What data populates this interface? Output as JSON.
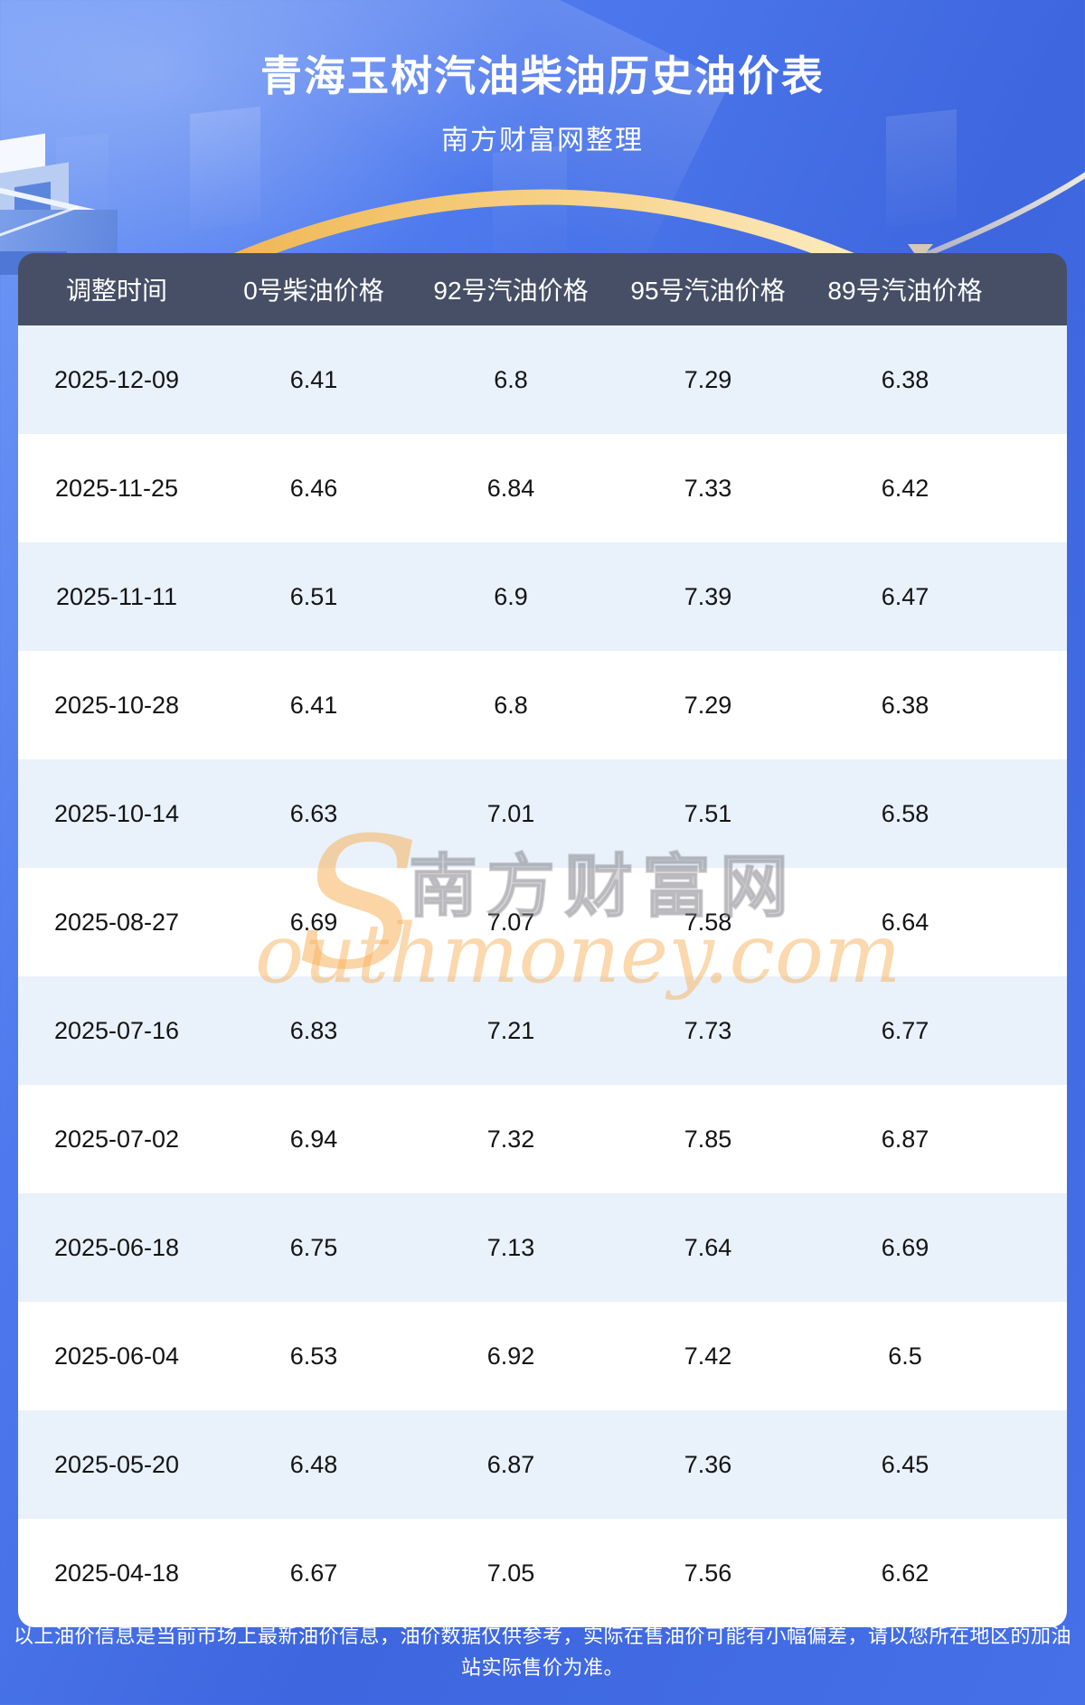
{
  "page": {
    "title": "青海玉树汽油柴油历史油价表",
    "subtitle": "南方财富网整理"
  },
  "watermark": {
    "s_glyph": "S",
    "brand_cjk": "南方财富网",
    "brand_latin": "outhmoney.com"
  },
  "footer": {
    "disclaimer": "以上油价信息是当前市场上最新油价信息，油价数据仅供参考，实际在售油价可能有小幅偏差，请以您所在地区的加油站实际售价为准。"
  },
  "colors": {
    "page_blue": "#4a74ea",
    "header_bar": "#464f66",
    "row_tint": "#e9f1fb",
    "row_plain": "#ffffff",
    "gold_arc": "#f2b858",
    "watermark_orange": "#f8b15c",
    "watermark_gray": "#87878c"
  },
  "chart_data": {
    "type": "table",
    "title": "青海玉树汽油柴油历史油价表",
    "columns": [
      "调整时间",
      "0号柴油价格",
      "92号汽油价格",
      "95号汽油价格",
      "89号汽油价格"
    ],
    "rows": [
      [
        "2025-12-09",
        "6.41",
        "6.8",
        "7.29",
        "6.38"
      ],
      [
        "2025-11-25",
        "6.46",
        "6.84",
        "7.33",
        "6.42"
      ],
      [
        "2025-11-11",
        "6.51",
        "6.9",
        "7.39",
        "6.47"
      ],
      [
        "2025-10-28",
        "6.41",
        "6.8",
        "7.29",
        "6.38"
      ],
      [
        "2025-10-14",
        "6.63",
        "7.01",
        "7.51",
        "6.58"
      ],
      [
        "2025-08-27",
        "6.69",
        "7.07",
        "7.58",
        "6.64"
      ],
      [
        "2025-07-16",
        "6.83",
        "7.21",
        "7.73",
        "6.77"
      ],
      [
        "2025-07-02",
        "6.94",
        "7.32",
        "7.85",
        "6.87"
      ],
      [
        "2025-06-18",
        "6.75",
        "7.13",
        "7.64",
        "6.69"
      ],
      [
        "2025-06-04",
        "6.53",
        "6.92",
        "7.42",
        "6.5"
      ],
      [
        "2025-05-20",
        "6.48",
        "6.87",
        "7.36",
        "6.45"
      ],
      [
        "2025-04-18",
        "6.67",
        "7.05",
        "7.56",
        "6.62"
      ]
    ]
  }
}
